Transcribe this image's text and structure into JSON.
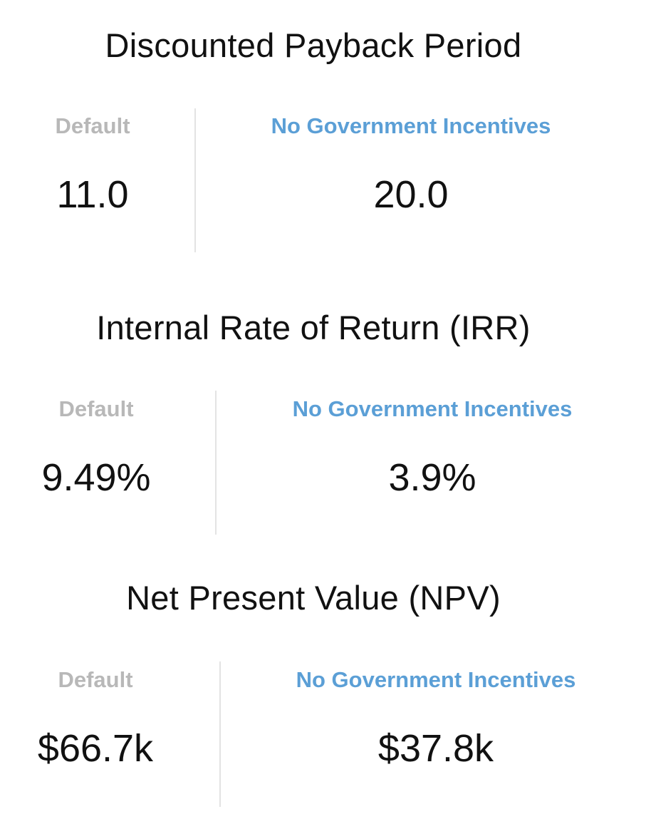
{
  "metrics": [
    {
      "title": "Discounted Payback Period",
      "default_label": "Default",
      "default_value": "11.0",
      "scenario_label": "No Government Incentives",
      "scenario_value": "20.0"
    },
    {
      "title": "Internal Rate of Return (IRR)",
      "default_label": "Default",
      "default_value": "9.49%",
      "scenario_label": "No Government Incentives",
      "scenario_value": "3.9%"
    },
    {
      "title": "Net Present Value (NPV)",
      "default_label": "Default",
      "default_value": "$66.7k",
      "scenario_label": "No Government Incentives",
      "scenario_value": "$37.8k"
    }
  ],
  "colors": {
    "default_label": "#b8b8b8",
    "scenario_label": "#5b9fd6",
    "divider": "#e3e3e3",
    "text": "#111111"
  }
}
